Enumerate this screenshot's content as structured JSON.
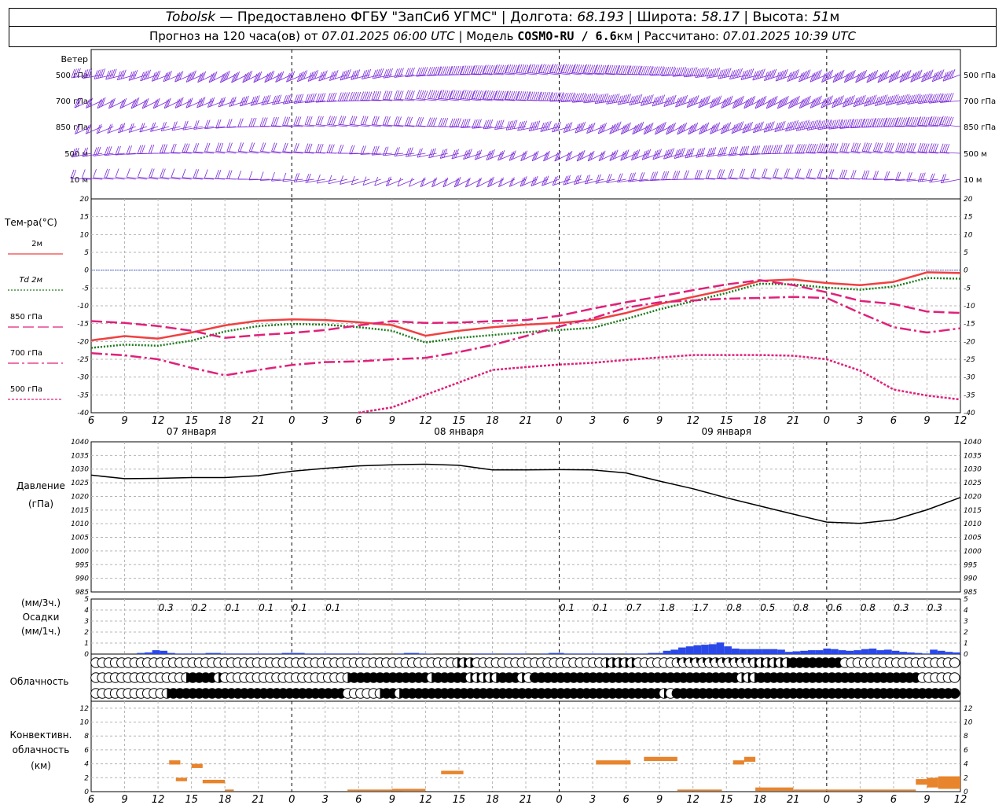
{
  "header": {
    "station": "Tobolsk",
    "provider": "— Предоставлено ФГБУ \"ЗапСиб УГМС\"",
    "lon_label": "Долгота:",
    "lon": "68.193",
    "lat_label": "Широта:",
    "lat": "58.17",
    "alt_label": "Высота:",
    "alt": "51",
    "alt_unit": "м",
    "forecast_label": "Прогноз на 120 часа(ов) от",
    "forecast_start": "07.01.2025 06:00 UTC",
    "model_label": "Модель",
    "model": "COSMO-RU / 6.6",
    "model_unit": "км",
    "computed_label": "Рассчитано:",
    "computed": "07.01.2025 10:39 UTC"
  },
  "chart_data": {
    "time_ticks": [
      "6",
      "9",
      "12",
      "15",
      "18",
      "21",
      "0",
      "3",
      "6",
      "9",
      "12",
      "15",
      "18",
      "21",
      "0",
      "3",
      "6",
      "9",
      "12",
      "15",
      "18",
      "21",
      "0",
      "3",
      "6",
      "9",
      "12"
    ],
    "day_labels": [
      "07 января",
      "08 января",
      "09 января"
    ],
    "wind_panel": {
      "title": "Ветер",
      "levels": [
        "500 гПа",
        "700 гПа",
        "850 гПа",
        "500 м",
        "10  м"
      ]
    },
    "temperature_panel": {
      "type": "line",
      "title": "Тем-ра(°C)",
      "y_ticks": [
        "20",
        "15",
        "10",
        "5",
        "0",
        "-5",
        "-10",
        "-15",
        "-20",
        "-25",
        "-30",
        "-35",
        "-40"
      ],
      "ylim": [
        -40,
        20
      ],
      "x_hours": [
        6,
        9,
        12,
        15,
        18,
        21,
        24,
        27,
        30,
        33,
        36,
        39,
        42,
        45,
        48,
        51,
        54,
        57,
        60,
        63,
        66,
        69,
        72,
        75,
        78,
        81,
        84
      ],
      "series": [
        {
          "name": "2м",
          "color": "#f04040",
          "dash": "",
          "width": 2.5,
          "values": [
            -19.7,
            -18.5,
            -19.2,
            -17.5,
            -15.5,
            -14.2,
            -13.8,
            -14.0,
            -14.6,
            -15.4,
            -18.4,
            -17.0,
            -16.0,
            -15.3,
            -14.8,
            -14.0,
            -12.0,
            -9.5,
            -7.5,
            -5.5,
            -3.0,
            -2.6,
            -3.6,
            -4.2,
            -3.3,
            -0.6,
            -0.8
          ]
        },
        {
          "name": "Td  2м",
          "color": "#1a7a1a",
          "dash": "2,2",
          "width": 2.5,
          "values": [
            -21.8,
            -20.9,
            -21.2,
            -19.8,
            -17.2,
            -15.7,
            -15.1,
            -15.3,
            -16.0,
            -17.0,
            -20.3,
            -19.0,
            -18.2,
            -17.4,
            -16.8,
            -16.2,
            -13.7,
            -11.0,
            -8.7,
            -6.4,
            -3.8,
            -4.0,
            -4.9,
            -5.5,
            -4.6,
            -2.2,
            -2.4
          ]
        },
        {
          "name": "850 гПа",
          "color": "#e0207a",
          "dash": "14,5",
          "width": 2.5,
          "values": [
            -14.3,
            -14.8,
            -15.7,
            -17.0,
            -19.0,
            -18.2,
            -17.6,
            -16.8,
            -15.5,
            -14.3,
            -14.8,
            -14.7,
            -14.3,
            -14.0,
            -12.8,
            -10.8,
            -9.0,
            -7.4,
            -5.6,
            -4.0,
            -2.8,
            -4.2,
            -6.2,
            -8.6,
            -9.5,
            -11.6,
            -12.0
          ]
        },
        {
          "name": "700 гПа",
          "color": "#e0207a",
          "dash": "14,4,3,4",
          "width": 2.5,
          "values": [
            -23.3,
            -23.9,
            -25.0,
            -27.4,
            -29.5,
            -28.0,
            -26.6,
            -25.8,
            -25.6,
            -25.0,
            -24.6,
            -23.0,
            -21.0,
            -18.5,
            -15.8,
            -13.5,
            -10.5,
            -9.0,
            -8.5,
            -8.0,
            -7.8,
            -7.5,
            -7.8,
            -12.0,
            -16.0,
            -17.5,
            -16.3
          ]
        },
        {
          "name": "500 гПа",
          "color": "#e0207a",
          "dash": "3,2",
          "width": 2.5,
          "values": [
            null,
            null,
            null,
            null,
            null,
            null,
            null,
            null,
            -40.0,
            -38.5,
            -35.0,
            -31.5,
            -28.0,
            -27.2,
            -26.5,
            -26.0,
            -25.2,
            -24.5,
            -23.8,
            -23.8,
            -23.8,
            -24.0,
            -25.0,
            -28.2,
            -33.5,
            -35.2,
            -36.3
          ]
        }
      ]
    },
    "pressure_panel": {
      "type": "line",
      "title": "Давление",
      "unit": "(гПа)",
      "y_ticks": [
        "1040",
        "1035",
        "1030",
        "1025",
        "1020",
        "1015",
        "1010",
        "1005",
        "1000",
        "995",
        "990",
        "985"
      ],
      "ylim": [
        985,
        1040
      ],
      "x_hours": [
        6,
        9,
        12,
        15,
        18,
        21,
        24,
        27,
        30,
        33,
        36,
        39,
        42,
        45,
        48,
        51,
        54,
        57,
        60,
        63,
        66,
        69,
        72,
        75,
        78,
        81,
        84
      ],
      "values": [
        1027.8,
        1026.5,
        1026.6,
        1026.9,
        1026.9,
        1027.6,
        1029.2,
        1030.3,
        1031.2,
        1031.6,
        1031.8,
        1031.4,
        1029.7,
        1029.7,
        1029.8,
        1029.7,
        1028.6,
        1025.6,
        1022.8,
        1019.5,
        1016.5,
        1013.5,
        1010.6,
        1010.1,
        1011.4,
        1015.1,
        1019.6
      ]
    },
    "precip_panel": {
      "type": "bar",
      "title": "Осадки",
      "label_3h": "(мм/3ч.)",
      "label_1h": "(мм/1ч.)",
      "y_ticks": [
        "5",
        "4",
        "3",
        "2",
        "1",
        "0"
      ],
      "ylim": [
        0,
        5
      ],
      "three_hour_labels": [
        {
          "hour": 12,
          "text": "0.3"
        },
        {
          "hour": 15,
          "text": "0.2"
        },
        {
          "hour": 18,
          "text": "0.1"
        },
        {
          "hour": 21,
          "text": "0.1"
        },
        {
          "hour": 24,
          "text": "0.1"
        },
        {
          "hour": 27,
          "text": "0.1"
        },
        {
          "hour": 48,
          "text": "0.1"
        },
        {
          "hour": 51,
          "text": "0.1"
        },
        {
          "hour": 54,
          "text": "0.7"
        },
        {
          "hour": 57,
          "text": "1.8"
        },
        {
          "hour": 60,
          "text": "1.7"
        },
        {
          "hour": 63,
          "text": "0.8"
        },
        {
          "hour": 66,
          "text": "0.5"
        },
        {
          "hour": 69,
          "text": "0.8"
        },
        {
          "hour": 72,
          "text": "0.6"
        },
        {
          "hour": 75,
          "text": "0.8"
        },
        {
          "hour": 78,
          "text": "0.3"
        },
        {
          "hour": 81,
          "text": "0.3"
        }
      ],
      "hourly": [
        0,
        0,
        0,
        0,
        0,
        0,
        0.1,
        0.15,
        0.35,
        0.3,
        0.1,
        0.05,
        0.05,
        0.05,
        0.05,
        0.1,
        0.1,
        0.05,
        0.05,
        0.05,
        0.05,
        0.05,
        0.05,
        0.05,
        0.05,
        0.1,
        0.1,
        0.1,
        0.05,
        0.05,
        0.05,
        0.05,
        0.05,
        0.05,
        0.05,
        0.05,
        0.02,
        0,
        0,
        0,
        0.05,
        0.1,
        0.1,
        0.05,
        0.02,
        0,
        0,
        0,
        0,
        0,
        0.05,
        0.05,
        0.05,
        0,
        0.05,
        0.05,
        0.05,
        0,
        0,
        0.05,
        0.1,
        0.1,
        0.05,
        0.05,
        0.05,
        0.05,
        0.05,
        0.05,
        0.05,
        0,
        0.05,
        0.05,
        0.05,
        0.1,
        0.1,
        0.3,
        0.4,
        0.6,
        0.7,
        0.8,
        0.85,
        0.9,
        1.05,
        0.7,
        0.5,
        0.45,
        0.45,
        0.45,
        0.45,
        0.45,
        0.4,
        0.2,
        0.25,
        0.3,
        0.35,
        0.35,
        0.5,
        0.45,
        0.35,
        0.3,
        0.35,
        0.45,
        0.5,
        0.35,
        0.4,
        0.3,
        0.2,
        0.15,
        0.1,
        0.05,
        0.4,
        0.3,
        0.2,
        0.15
      ]
    },
    "cloud_panel": {
      "title": "Облачность",
      "rows": [
        {
          "level": "upper",
          "runs": [
            [
              0,
              56,
              0
            ],
            [
              56,
              3,
              2
            ],
            [
              59,
              20,
              0
            ],
            [
              79,
              5,
              2
            ],
            [
              84,
              6,
              0
            ],
            [
              90,
              12,
              1
            ],
            [
              102,
              6,
              2
            ],
            [
              108,
              8,
              4
            ],
            [
              116,
              18,
              0
            ]
          ]
        },
        {
          "level": "middle",
          "runs": [
            [
              0,
              14,
              0
            ],
            [
              14,
              1,
              2
            ],
            [
              15,
              4,
              4
            ],
            [
              19,
              1,
              2
            ],
            [
              20,
              19,
              0
            ],
            [
              39,
              1,
              2
            ],
            [
              40,
              12,
              4
            ],
            [
              52,
              1,
              2
            ],
            [
              53,
              5,
              4
            ],
            [
              58,
              5,
              2
            ],
            [
              63,
              3,
              4
            ],
            [
              66,
              1,
              2
            ],
            [
              67,
              1,
              0
            ],
            [
              68,
              32,
              4
            ],
            [
              100,
              3,
              2
            ],
            [
              103,
              25,
              4
            ],
            [
              128,
              6,
              0
            ]
          ]
        },
        {
          "level": "lower",
          "runs": [
            [
              0,
              11,
              0
            ],
            [
              11,
              1,
              2
            ],
            [
              12,
              27,
              4
            ],
            [
              39,
              5,
              0
            ],
            [
              44,
              1,
              2
            ],
            [
              45,
              2,
              4
            ],
            [
              47,
              1,
              2
            ],
            [
              48,
              40,
              4
            ],
            [
              88,
              1,
              2
            ],
            [
              89,
              1,
              0
            ],
            [
              90,
              44,
              4
            ]
          ]
        }
      ]
    },
    "convective_panel": {
      "type": "bar",
      "title": "Конвективн. облачность",
      "unit": "(км)",
      "y_ticks": [
        "12",
        "10",
        "8",
        "6",
        "4",
        "2",
        "0"
      ],
      "ylim": [
        0,
        13
      ],
      "segments": [
        {
          "h0": 13.0,
          "h1": 14.0,
          "base": 3.9,
          "top": 4.5
        },
        {
          "h0": 13.6,
          "h1": 14.6,
          "base": 1.5,
          "top": 2.0
        },
        {
          "h0": 15.0,
          "h1": 16.0,
          "base": 3.4,
          "top": 4.0
        },
        {
          "h0": 16.0,
          "h1": 18.0,
          "base": 1.2,
          "top": 1.7
        },
        {
          "h0": 18.0,
          "h1": 18.8,
          "base": 0.1,
          "top": 0.3
        },
        {
          "h0": 29.0,
          "h1": 34.0,
          "base": 0.1,
          "top": 0.3
        },
        {
          "h0": 33.0,
          "h1": 36.0,
          "base": 0.1,
          "top": 0.4
        },
        {
          "h0": 37.4,
          "h1": 39.4,
          "base": 2.5,
          "top": 3.0
        },
        {
          "h0": 51.3,
          "h1": 54.4,
          "base": 3.9,
          "top": 4.5
        },
        {
          "h0": 55.6,
          "h1": 58.6,
          "base": 4.4,
          "top": 5.0
        },
        {
          "h0": 58.6,
          "h1": 62.6,
          "base": 0.1,
          "top": 0.3
        },
        {
          "h0": 63.6,
          "h1": 64.6,
          "base": 3.9,
          "top": 4.5
        },
        {
          "h0": 64.6,
          "h1": 65.6,
          "base": 4.3,
          "top": 5.0
        },
        {
          "h0": 65.6,
          "h1": 69.0,
          "base": 0.1,
          "top": 0.6
        },
        {
          "h0": 69.0,
          "h1": 80.0,
          "base": 0.1,
          "top": 0.3
        },
        {
          "h0": 80.0,
          "h1": 81.0,
          "base": 1.0,
          "top": 1.8
        },
        {
          "h0": 81.0,
          "h1": 82.0,
          "base": 0.6,
          "top": 2.0
        },
        {
          "h0": 82.0,
          "h1": 84.0,
          "base": 0.4,
          "top": 2.2
        }
      ]
    }
  },
  "colors": {
    "wind": "#7a2ad8",
    "pressure_line": "#000000",
    "precip_bar": "#2a48e8",
    "convective_bar": "#e8842c",
    "grid": "#b4b4b4",
    "zero_line": "#4a6ae0"
  }
}
